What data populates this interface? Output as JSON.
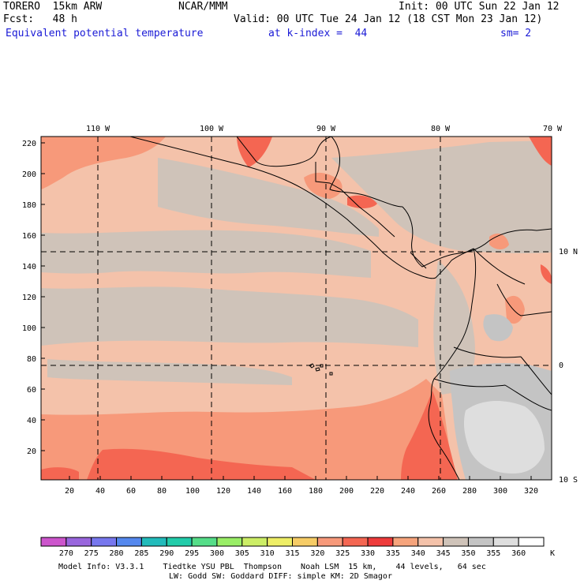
{
  "header": {
    "model": "TORERO  15km ARW",
    "org": "NCAR/MMM",
    "init": "Init: 00 UTC Sun 22 Jan 12",
    "fcst": "Fcst:   48 h",
    "valid": "Valid: 00 UTC Tue 24 Jan 12 (18 CST Mon 23 Jan 12)",
    "field": "Equivalent potential temperature",
    "level": "at k-index =  44",
    "smooth": "sm= 2"
  },
  "map": {
    "lon_labels": [
      "110 W",
      "100 W",
      "90 W",
      "80 W",
      "70 W"
    ],
    "lat_labels": [
      "10 N",
      "0",
      "10 S"
    ],
    "y_ticks": [
      "220",
      "200",
      "180",
      "160",
      "140",
      "120",
      "100",
      "80",
      "60",
      "40",
      "20"
    ],
    "x_ticks": [
      "20",
      "40",
      "60",
      "80",
      "100",
      "120",
      "140",
      "160",
      "180",
      "200",
      "220",
      "240",
      "260",
      "280",
      "300",
      "320"
    ],
    "colors": {
      "c325": "#f7997a",
      "c330": "#f46652",
      "c335": "#ee3b3b",
      "c340": "#f4c2aa",
      "c345": "#cfc3b9",
      "c350": "#c4c4c4",
      "c355": "#dedede"
    }
  },
  "colorbar": {
    "labels": [
      "270",
      "275",
      "280",
      "285",
      "290",
      "295",
      "300",
      "305",
      "310",
      "315",
      "320",
      "325",
      "330",
      "335",
      "340",
      "345",
      "350",
      "355",
      "360"
    ],
    "unit": "K",
    "colors": [
      "#cc55cc",
      "#9966dd",
      "#7777ee",
      "#5588ee",
      "#22bbbb",
      "#22ccaa",
      "#55dd88",
      "#99ee66",
      "#ccee66",
      "#eeee66",
      "#f6cc66",
      "#f7997a",
      "#f46652",
      "#ee3b3b",
      "#f6a47c",
      "#f4c2aa",
      "#cfc3b9",
      "#c4c4c4",
      "#dedede",
      "#ffffff"
    ]
  },
  "footer": {
    "line1": "Model Info: V3.3.1    Tiedtke YSU PBL  Thompson    Noah LSM  15 km,    44 levels,   64 sec",
    "line2": "LW: Godd SW: Goddard DIFF: simple KM: 2D Smagor"
  }
}
